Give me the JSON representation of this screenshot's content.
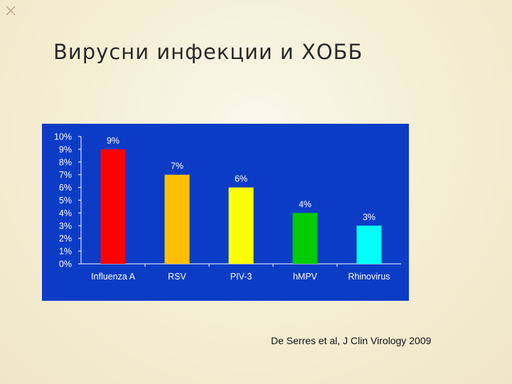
{
  "slide": {
    "title": "Вирусни инфекции и ХОББ",
    "citation": "De Serres et al, J  Clin Virology 2009"
  },
  "colors": {
    "chart_background": "#0c3cc6",
    "label_text": "#ffffff",
    "axis": "#ffffff"
  },
  "chart_data": {
    "type": "bar",
    "title": "",
    "xlabel": "",
    "ylabel": "",
    "categories": [
      "Influenza A",
      "RSV",
      "PIV-3",
      "hMPV",
      "Rhinovirus"
    ],
    "values": [
      9,
      7,
      6,
      4,
      3
    ],
    "data_labels": [
      "9%",
      "7%",
      "6%",
      "4%",
      "3%"
    ],
    "bar_colors": [
      "#ff0000",
      "#ffc000",
      "#ffff00",
      "#00cc00",
      "#00ffff"
    ],
    "ylim": [
      0,
      10
    ],
    "y_ticks": [
      "0%",
      "1%",
      "2%",
      "3%",
      "4%",
      "5%",
      "6%",
      "7%",
      "8%",
      "9%",
      "10%"
    ],
    "grid": false,
    "legend": "none"
  }
}
